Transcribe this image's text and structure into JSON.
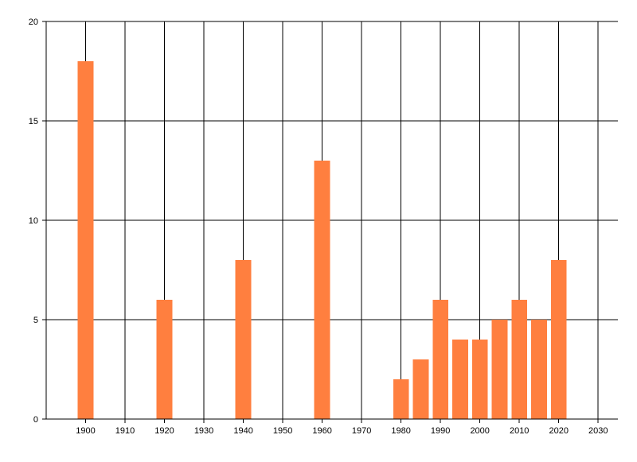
{
  "chart_data": {
    "type": "bar",
    "title": "",
    "xlabel": "",
    "ylabel": "",
    "x": [
      1900,
      1920,
      1940,
      1960,
      1980,
      1985,
      1990,
      1995,
      2000,
      2005,
      2010,
      2015,
      2020
    ],
    "values": [
      18,
      6,
      8,
      13,
      2,
      3,
      6,
      4,
      4,
      5,
      6,
      5,
      8
    ],
    "xlim": [
      1890,
      2035
    ],
    "ylim": [
      0,
      20
    ],
    "xticks": [
      1900,
      1910,
      1920,
      1930,
      1940,
      1950,
      1960,
      1970,
      1980,
      1990,
      2000,
      2010,
      2020,
      2030
    ],
    "yticks": [
      0,
      5,
      10,
      15,
      20
    ],
    "bar_width_years": 4,
    "grid": true,
    "legend": "none",
    "colors": {
      "bar": "#ff7f3f",
      "grid": "#000000",
      "background": "#ffffff"
    }
  }
}
